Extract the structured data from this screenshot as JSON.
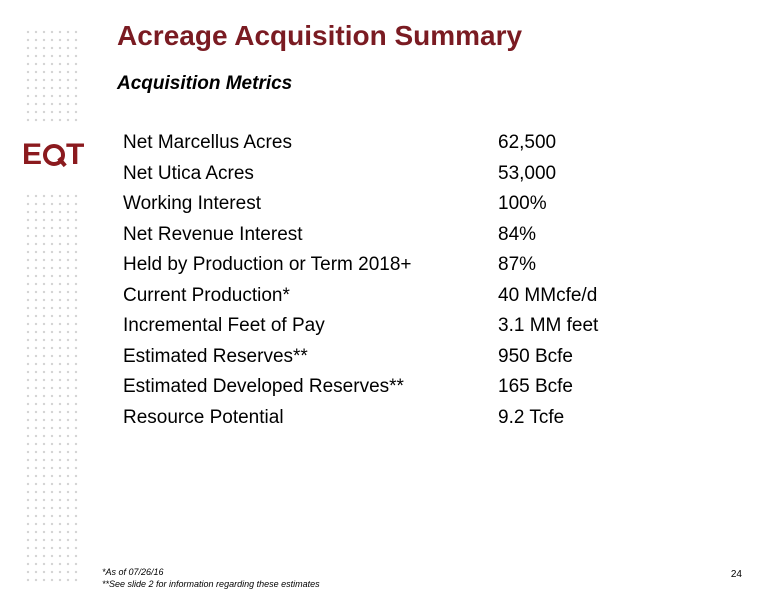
{
  "slide": {
    "title": "Acreage Acquisition Summary",
    "subtitle": "Acquisition Metrics",
    "page_number": "24"
  },
  "logo": {
    "text": "EQT",
    "color": "#8b1a1e"
  },
  "metrics": [
    {
      "label": "Net Marcellus Acres",
      "value": "62,500"
    },
    {
      "label": "Net Utica Acres",
      "value": "53,000"
    },
    {
      "label": "Working Interest",
      "value": "100%"
    },
    {
      "label": "Net Revenue Interest",
      "value": "84%"
    },
    {
      "label": "Held by Production or Term 2018+",
      "value": "87%"
    },
    {
      "label": "Current Production*",
      "value": "40 MMcfe/d"
    },
    {
      "label": "Incremental Feet of Pay",
      "value": "3.1 MM feet"
    },
    {
      "label": "Estimated Reserves**",
      "value": "950 Bcfe"
    },
    {
      "label": "Estimated Developed Reserves**",
      "value": "165 Bcfe"
    },
    {
      "label": "Resource Potential",
      "value": "9.2 Tcfe"
    }
  ],
  "footnotes": [
    "*As of 07/26/16",
    "**See slide 2 for information regarding these estimates"
  ],
  "colors": {
    "title": "#7a1b22",
    "text": "#000000",
    "dots": "#d3d3d3"
  }
}
